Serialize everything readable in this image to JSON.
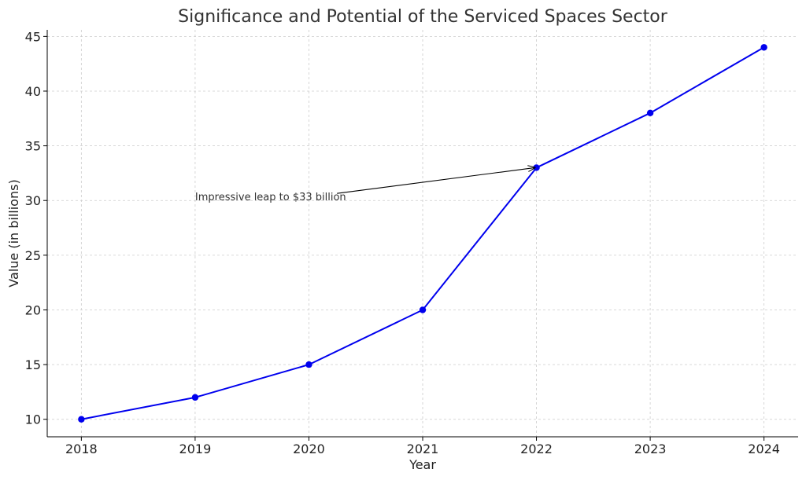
{
  "chart_data": {
    "type": "line",
    "title": "Significance and Potential of the Serviced Spaces Sector",
    "xlabel": "Year",
    "ylabel": "Value (in billions)",
    "x": [
      2018,
      2019,
      2020,
      2021,
      2022,
      2023,
      2024
    ],
    "series": [
      {
        "values": [
          10,
          12,
          15,
          20,
          33,
          38,
          44
        ],
        "color": "#0000ee"
      }
    ],
    "xlim": [
      2017.7,
      2024.3
    ],
    "ylim": [
      8.4,
      45.6
    ],
    "xticks": [
      2018,
      2019,
      2020,
      2021,
      2022,
      2023,
      2024
    ],
    "yticks": [
      10,
      15,
      20,
      25,
      30,
      35,
      40,
      45
    ],
    "grid": true,
    "annotations": [
      {
        "text": "Impressive leap to $33 billion",
        "x": 2019,
        "y": 30,
        "arrow_to": {
          "x": 2022,
          "y": 33
        }
      }
    ]
  }
}
